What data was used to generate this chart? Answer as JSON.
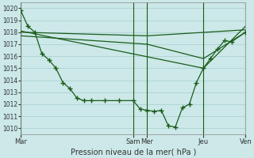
{
  "xlabel": "Pression niveau de la mer( hPa )",
  "background_color": "#cce8e8",
  "grid_color": "#a8cece",
  "line_color": "#1a5c1a",
  "ylim": [
    1009.5,
    1020.5
  ],
  "yticks": [
    1010,
    1011,
    1012,
    1013,
    1014,
    1015,
    1016,
    1017,
    1018,
    1019,
    1020
  ],
  "xlim": [
    0,
    192
  ],
  "x_tick_positions": [
    0,
    96,
    108,
    156,
    192
  ],
  "x_tick_labels": [
    "Mar",
    "Sam",
    "Mer",
    "Jeu",
    "Ven"
  ],
  "vline_positions": [
    0,
    96,
    108,
    156,
    192
  ],
  "series1_x": [
    0,
    6,
    12,
    18,
    24,
    30,
    36,
    42,
    48,
    54,
    60,
    72,
    84,
    96,
    102,
    108,
    114,
    120,
    126,
    132,
    138,
    144,
    150,
    156,
    162,
    168,
    174,
    180,
    192
  ],
  "series1_y": [
    1019.8,
    1018.5,
    1018.0,
    1016.2,
    1015.7,
    1015.0,
    1013.8,
    1013.3,
    1012.5,
    1012.3,
    1012.3,
    1012.3,
    1012.3,
    1012.3,
    1011.6,
    1011.5,
    1011.4,
    1011.5,
    1010.2,
    1010.1,
    1011.7,
    1012.0,
    1013.8,
    1015.0,
    1015.8,
    1016.6,
    1017.3,
    1017.2,
    1018.0
  ],
  "series2_x": [
    0,
    108,
    192
  ],
  "series2_y": [
    1018.0,
    1017.7,
    1018.2
  ],
  "series3_x": [
    0,
    108,
    156,
    192
  ],
  "series3_y": [
    1017.7,
    1017.0,
    1015.8,
    1018.0
  ],
  "series4_x": [
    0,
    156,
    192
  ],
  "series4_y": [
    1018.1,
    1015.0,
    1018.5
  ],
  "figsize": [
    3.2,
    2.0
  ],
  "dpi": 100
}
